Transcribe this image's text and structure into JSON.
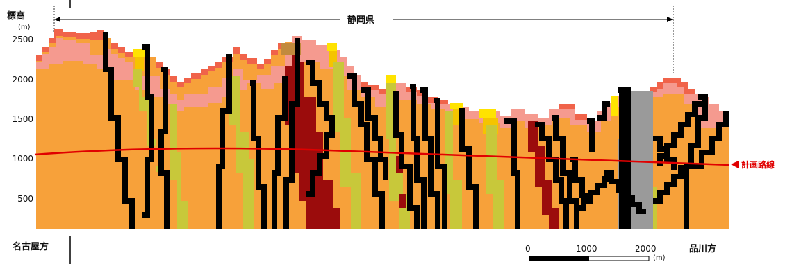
{
  "axis": {
    "ylabel": "標高",
    "yunit": "(m)",
    "yticks": [
      "2500",
      "2000",
      "1500",
      "1000",
      "500"
    ]
  },
  "region": {
    "label": "静岡県"
  },
  "ends": {
    "left": "名古屋方",
    "right": "品川方"
  },
  "route": {
    "label": "計画路線",
    "color": "#e00000"
  },
  "scalebar": {
    "ticks": [
      "0",
      "1000",
      "2000"
    ],
    "unit": "(m)"
  },
  "colors": {
    "orange": "#f7a13a",
    "pink": "#f59a8f",
    "red_top": "#f0634a",
    "yellow": "#ffe300",
    "yellow_dark": "#f5c400",
    "olive": "#c8c83a",
    "maroon": "#9b0c0c",
    "brown": "#c28a3d",
    "black": "#000000",
    "gray": "#9a9a9a"
  }
}
